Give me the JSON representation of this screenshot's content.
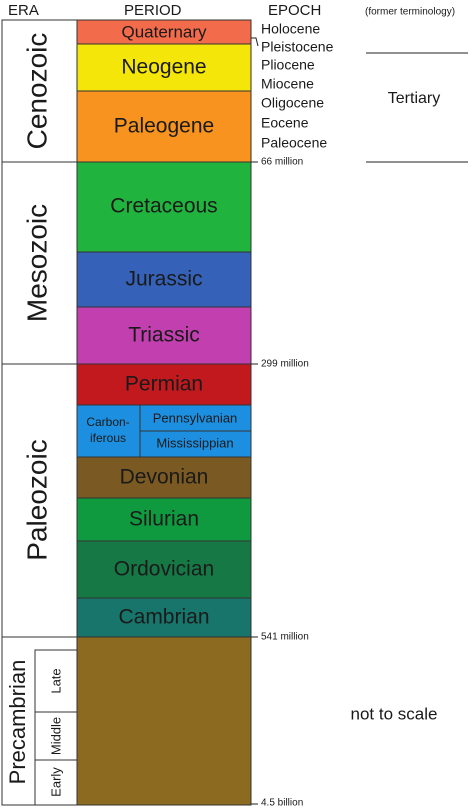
{
  "header": {
    "era": "ERA",
    "period": "PERIOD",
    "epoch": "EPOCH",
    "former": "(former terminology)"
  },
  "eras": [
    "Cenozoic",
    "Mesozoic",
    "Paleozoic",
    "Precambrian"
  ],
  "precambrian_subdivisions": [
    "Late",
    "Middle",
    "Early"
  ],
  "periods": [
    "Quaternary",
    "Neogene",
    "Paleogene",
    "Cretaceous",
    "Jurassic",
    "Triassic",
    "Permian",
    "Devonian",
    "Silurian",
    "Ordovician",
    "Cambrian"
  ],
  "carboniferous": {
    "label": [
      "Carbon-",
      "iferous"
    ],
    "subperiods": [
      "Pennsylvanian",
      "Mississippian"
    ]
  },
  "epochs": [
    "Holocene",
    "Pleistocene",
    "Pliocene",
    "Miocene",
    "Oligocene",
    "Eocene",
    "Paleocene"
  ],
  "dates": [
    "66 million",
    "299 million",
    "541 million",
    "4.5 billion"
  ],
  "former_term": "Tertiary",
  "note": "not to scale"
}
